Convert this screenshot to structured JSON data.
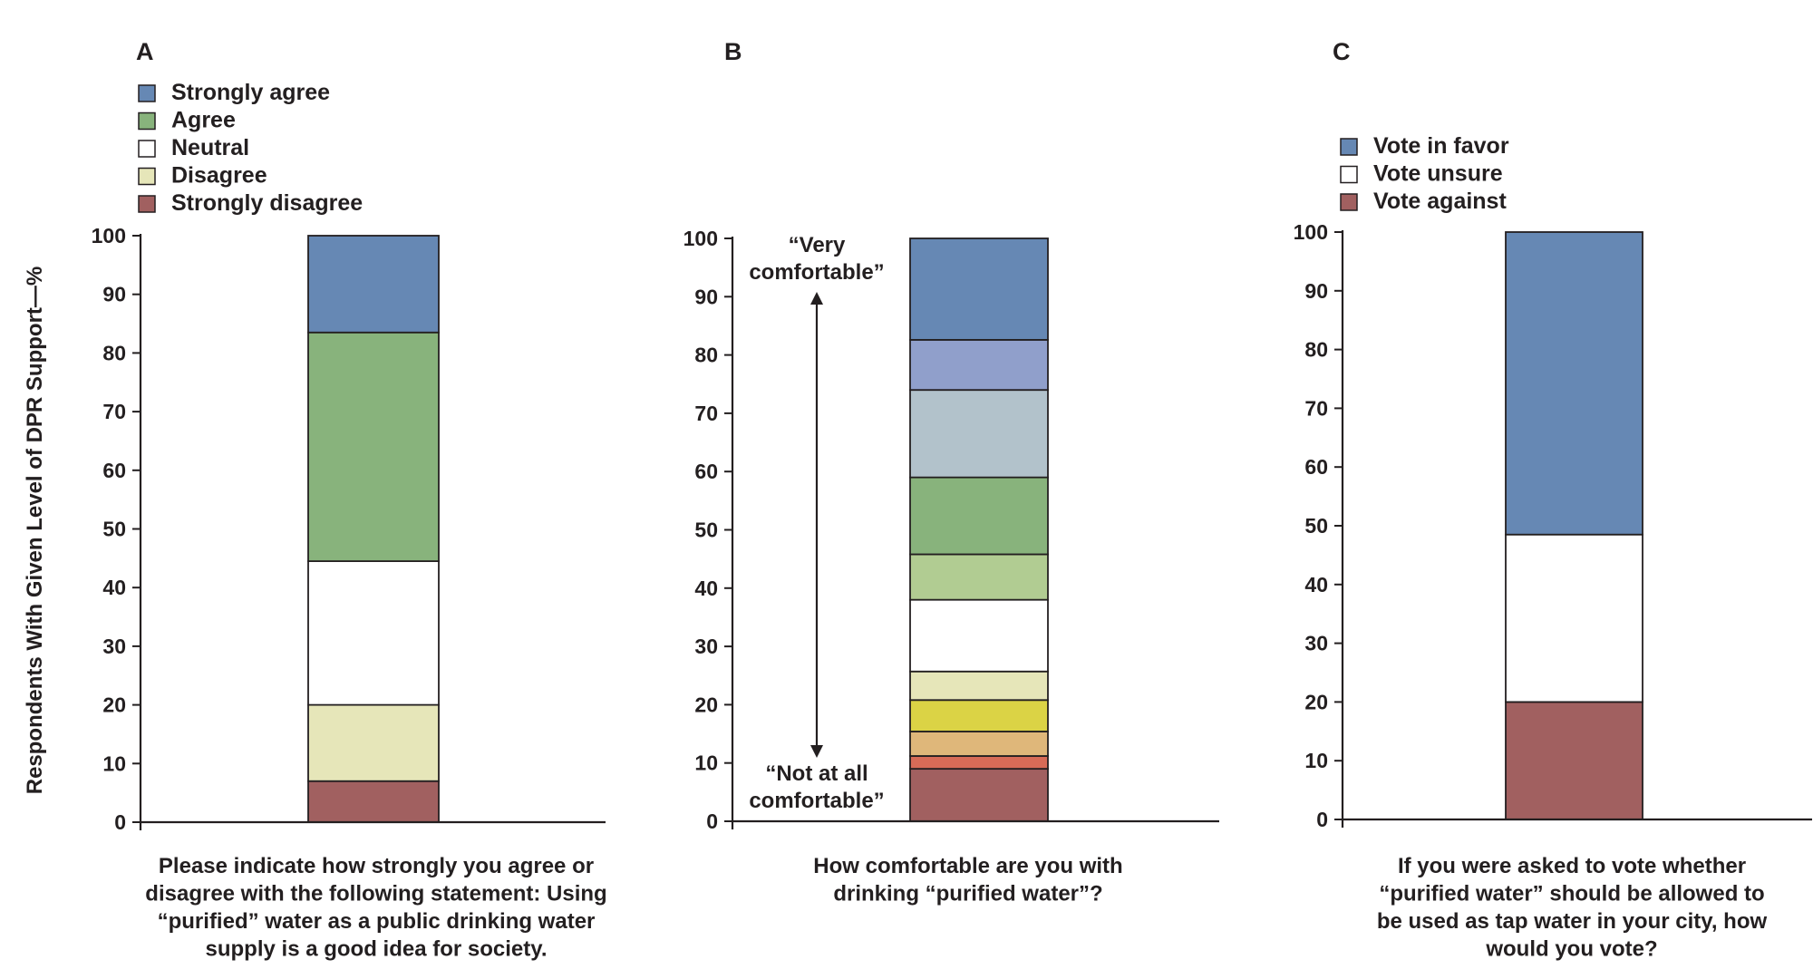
{
  "ylabel": "Respondents With Given Level of DPR Support—%",
  "colors": {
    "axis": "#231f20",
    "strongly_agree": "#6688b4",
    "agree": "#88b37c",
    "neutral": "#ffffff",
    "disagree": "#e6e6b9",
    "strongly_disagree": "#a16060"
  },
  "chart_data": [
    {
      "panel": "A",
      "type": "bar",
      "stacked": true,
      "ylim": [
        0,
        100
      ],
      "yticks": [
        0,
        10,
        20,
        30,
        40,
        50,
        60,
        70,
        80,
        90,
        100
      ],
      "caption": [
        "Please indicate how strongly you agree or",
        "disagree with the following statement: Using",
        "“purified” water as a public drinking water",
        "supply is a good idea for society."
      ],
      "legend": [
        {
          "label": "Strongly agree",
          "color": "#6688b4"
        },
        {
          "label": "Agree",
          "color": "#88b37c"
        },
        {
          "label": "Neutral",
          "color": "#ffffff"
        },
        {
          "label": "Disagree",
          "color": "#e6e6b9"
        },
        {
          "label": "Strongly disagree",
          "color": "#a16060"
        }
      ],
      "series": [
        {
          "name": "Strongly disagree",
          "value": 7,
          "color": "#a16060"
        },
        {
          "name": "Disagree",
          "value": 13,
          "color": "#e6e6b9"
        },
        {
          "name": "Neutral",
          "value": 24.5,
          "color": "#ffffff"
        },
        {
          "name": "Agree",
          "value": 39,
          "color": "#88b37c"
        },
        {
          "name": "Strongly agree",
          "value": 16.5,
          "color": "#6688b4"
        }
      ]
    },
    {
      "panel": "B",
      "type": "bar",
      "stacked": true,
      "ylim": [
        0,
        100
      ],
      "yticks": [
        0,
        10,
        20,
        30,
        40,
        50,
        60,
        70,
        80,
        90,
        100
      ],
      "caption": [
        "How comfortable are you with",
        "drinking “purified water”?"
      ],
      "annotation_top": [
        "“Very",
        "comfortable”"
      ],
      "annotation_bottom": [
        "“Not at all",
        "comfortable”"
      ],
      "series": [
        {
          "value": 9,
          "color": "#a16060"
        },
        {
          "value": 2.2,
          "color": "#d86b57"
        },
        {
          "value": 4.2,
          "color": "#dfb77a"
        },
        {
          "value": 5.4,
          "color": "#dbd345"
        },
        {
          "value": 4.9,
          "color": "#e6e6b9"
        },
        {
          "value": 12.3,
          "color": "#ffffff"
        },
        {
          "value": 7.8,
          "color": "#b1cc92"
        },
        {
          "value": 13.2,
          "color": "#88b37c"
        },
        {
          "value": 15,
          "color": "#b2c2cb"
        },
        {
          "value": 8.6,
          "color": "#909fcb"
        },
        {
          "value": 17.4,
          "color": "#6688b4"
        }
      ]
    },
    {
      "panel": "C",
      "type": "bar",
      "stacked": true,
      "ylim": [
        0,
        100
      ],
      "yticks": [
        0,
        10,
        20,
        30,
        40,
        50,
        60,
        70,
        80,
        90,
        100
      ],
      "caption": [
        "If you were asked to vote whether",
        "“purified water” should be allowed to",
        "be used as tap water in your city, how",
        "would you vote?"
      ],
      "legend": [
        {
          "label": "Vote in favor",
          "color": "#6688b4"
        },
        {
          "label": "Vote unsure",
          "color": "#ffffff"
        },
        {
          "label": "Vote against",
          "color": "#a16060"
        }
      ],
      "series": [
        {
          "name": "Vote against",
          "value": 20,
          "color": "#a16060"
        },
        {
          "name": "Vote unsure",
          "value": 28.5,
          "color": "#ffffff"
        },
        {
          "name": "Vote in favor",
          "value": 51.5,
          "color": "#6688b4"
        }
      ]
    }
  ]
}
